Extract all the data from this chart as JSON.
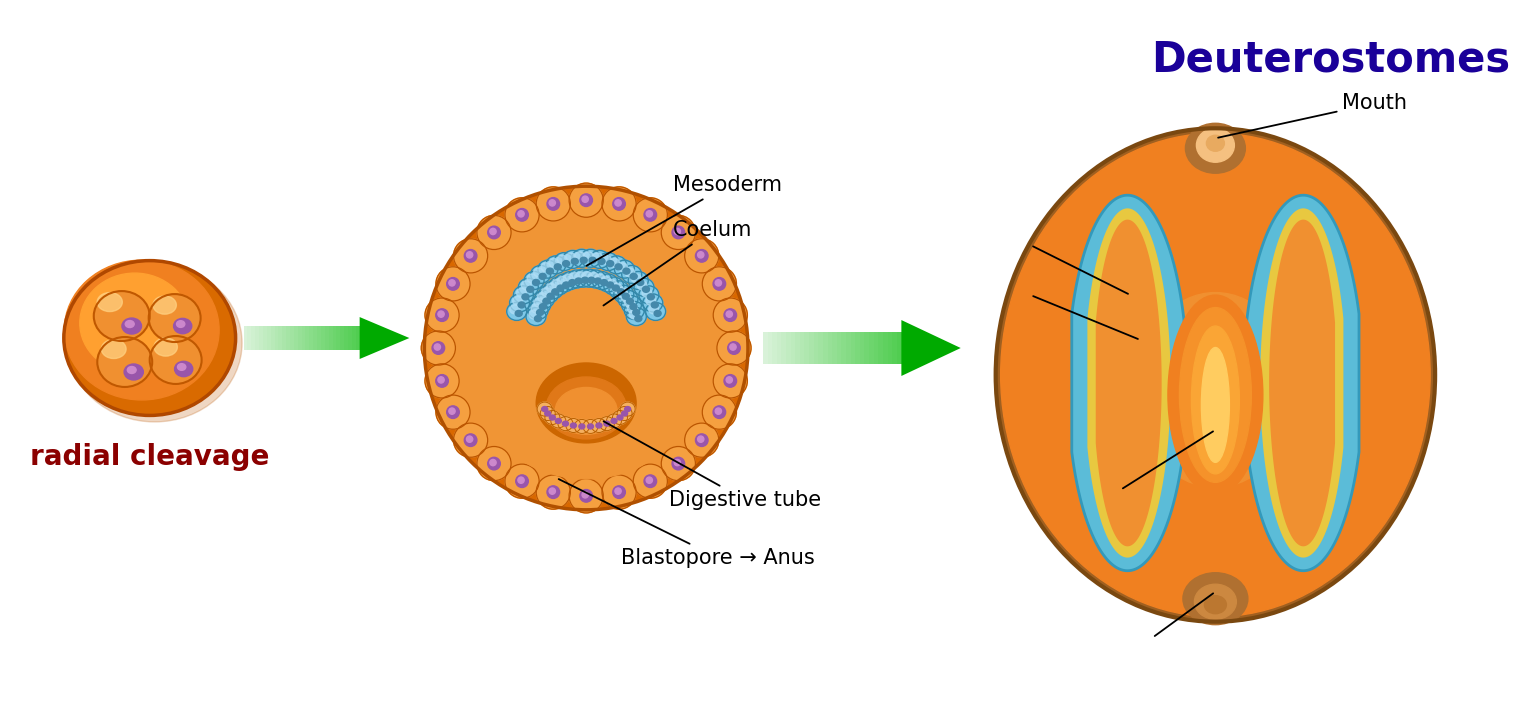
{
  "title": "Deuterostomes",
  "title_color": "#1a0099",
  "title_fontsize": 30,
  "label_radial_cleavage": "radial cleavage",
  "label_radial_cleavage_color": "#8b0000",
  "label_radial_cleavage_fontsize": 20,
  "label_mesoderm": "Mesoderm",
  "label_coelum": "Coelum",
  "label_digestive_tube": "Digestive tube",
  "label_blastopore": "Blastopore → Anus",
  "label_mouth": "Mouth",
  "annotation_fontsize": 15,
  "bg_color": "#ffffff"
}
